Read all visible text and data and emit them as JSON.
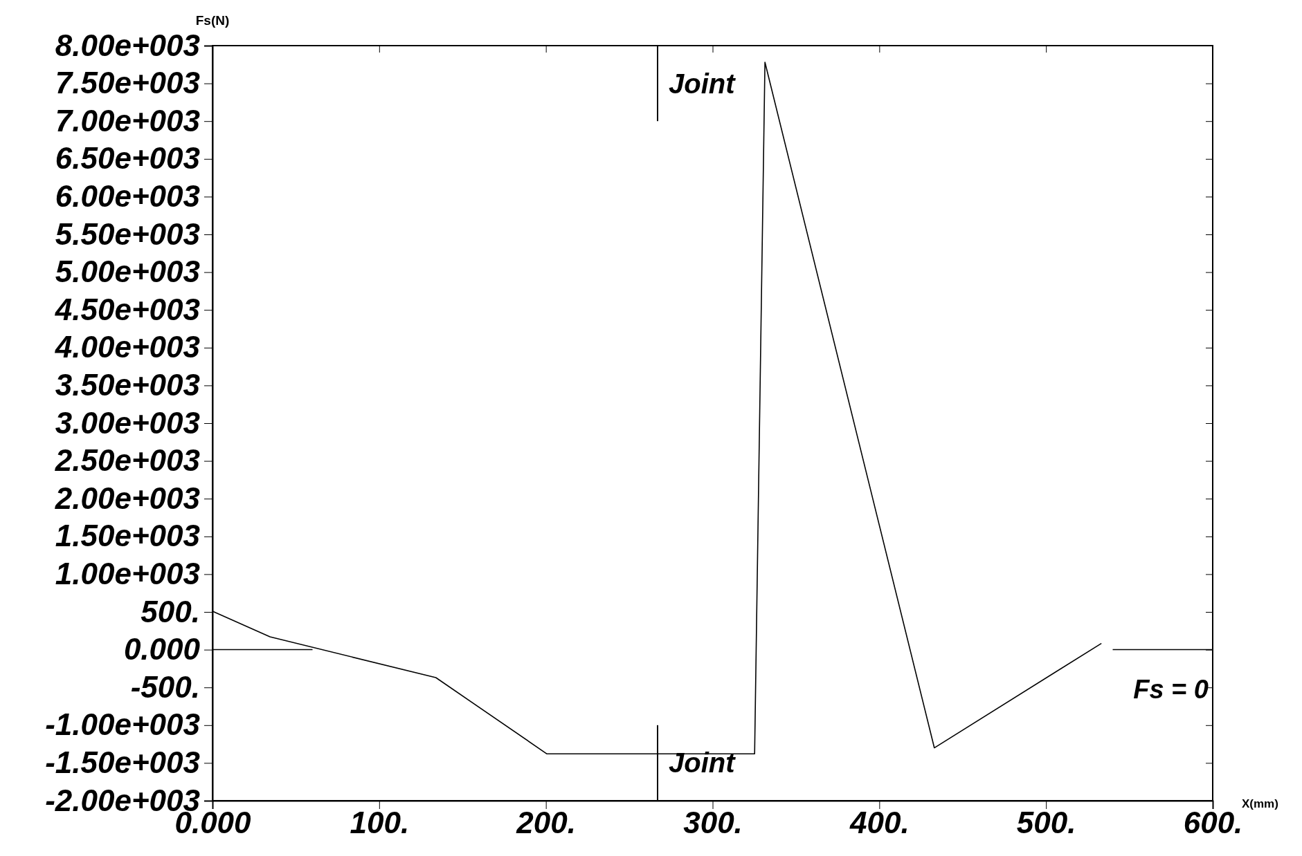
{
  "chart_data": {
    "type": "line",
    "xlabel": "X(mm)",
    "ylabel": "Fs(N)",
    "xlim": [
      0,
      600
    ],
    "ylim": [
      -2000,
      8000
    ],
    "xticks": [
      {
        "value": 0,
        "label": "0.000"
      },
      {
        "value": 100,
        "label": "100."
      },
      {
        "value": 200,
        "label": "200."
      },
      {
        "value": 300,
        "label": "300."
      },
      {
        "value": 400,
        "label": "400."
      },
      {
        "value": 500,
        "label": "500."
      },
      {
        "value": 600,
        "label": "600."
      }
    ],
    "yticks": [
      {
        "value": -2000,
        "label": "-2.00e+003"
      },
      {
        "value": -1500,
        "label": "-1.50e+003"
      },
      {
        "value": -1000,
        "label": "-1.00e+003"
      },
      {
        "value": -500,
        "label": "-500."
      },
      {
        "value": 0,
        "label": "0.000"
      },
      {
        "value": 500,
        "label": "500."
      },
      {
        "value": 1000,
        "label": "1.00e+003"
      },
      {
        "value": 1500,
        "label": "1.50e+003"
      },
      {
        "value": 2000,
        "label": "2.00e+003"
      },
      {
        "value": 2500,
        "label": "2.50e+003"
      },
      {
        "value": 3000,
        "label": "3.00e+003"
      },
      {
        "value": 3500,
        "label": "3.50e+003"
      },
      {
        "value": 4000,
        "label": "4.00e+003"
      },
      {
        "value": 4500,
        "label": "4.50e+003"
      },
      {
        "value": 5000,
        "label": "5.00e+003"
      },
      {
        "value": 5500,
        "label": "5.50e+003"
      },
      {
        "value": 6000,
        "label": "6.00e+003"
      },
      {
        "value": 6500,
        "label": "6.50e+003"
      },
      {
        "value": 7000,
        "label": "7.00e+003"
      },
      {
        "value": 7500,
        "label": "7.50e+003"
      },
      {
        "value": 8000,
        "label": "8.00e+003"
      }
    ],
    "series": [
      {
        "color": "#000000",
        "x": [
          0,
          34.5,
          134,
          200.6,
          325.2,
          331.4,
          433,
          533
        ],
        "values": [
          510,
          170,
          -370,
          -1380,
          -1380,
          7780,
          -1300,
          80
        ]
      }
    ],
    "ref_lines": [
      {
        "axis": "y",
        "value": 0,
        "label": "Fs = 0"
      },
      {
        "axis": "x",
        "value": 267,
        "label": "Joint"
      }
    ]
  }
}
